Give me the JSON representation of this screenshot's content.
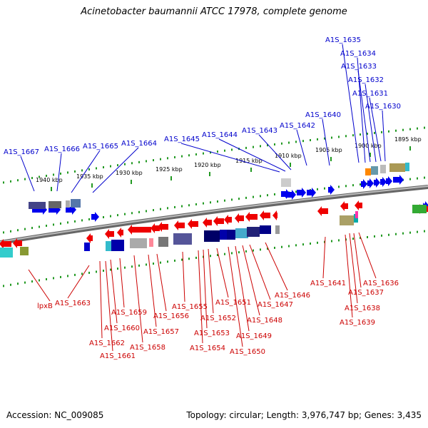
{
  "title": "Acinetobacter baumannii ATCC 17978, complete genome",
  "footer": {
    "accession": "Accession: NC_009085",
    "stats": "Topology: circular; Length: 3,976,747 bp; Genes: 3,435"
  },
  "colors": {
    "forward_label": "#0000cc",
    "reverse_label": "#cc0000",
    "forward_gene": "#0000ee",
    "reverse_gene": "#ee0000",
    "tick": "#229922",
    "backbone": "#888888"
  },
  "ticks": [
    "1940 kbp",
    "1935 kbp",
    "1930 kbp",
    "1925 kbp",
    "1920 kbp",
    "1915 kbp",
    "1910 kbp",
    "1905 kbp",
    "1900 kbp",
    "1895 kbp"
  ],
  "forward_genes": [
    "A1S_1667",
    "A1S_1666",
    "A1S_1665",
    "A1S_1664",
    "A1S_1645",
    "A1S_1644",
    "A1S_1643",
    "A1S_1642",
    "A1S_1640",
    "A1S_1635",
    "A1S_1634",
    "A1S_1633",
    "A1S_1632",
    "A1S_1631",
    "A1S_1630"
  ],
  "reverse_genes": [
    "lpxB",
    "A1S_1663",
    "A1S_1662",
    "A1S_1661",
    "A1S_1660",
    "A1S_1659",
    "A1S_1658",
    "A1S_1657",
    "A1S_1656",
    "A1S_1655",
    "A1S_1654",
    "A1S_1653",
    "A1S_1652",
    "A1S_1651",
    "A1S_1650",
    "A1S_1649",
    "A1S_1648",
    "A1S_1647",
    "A1S_1646",
    "A1S_1641",
    "A1S_1639",
    "A1S_1638",
    "A1S_1637",
    "A1S_1636"
  ]
}
